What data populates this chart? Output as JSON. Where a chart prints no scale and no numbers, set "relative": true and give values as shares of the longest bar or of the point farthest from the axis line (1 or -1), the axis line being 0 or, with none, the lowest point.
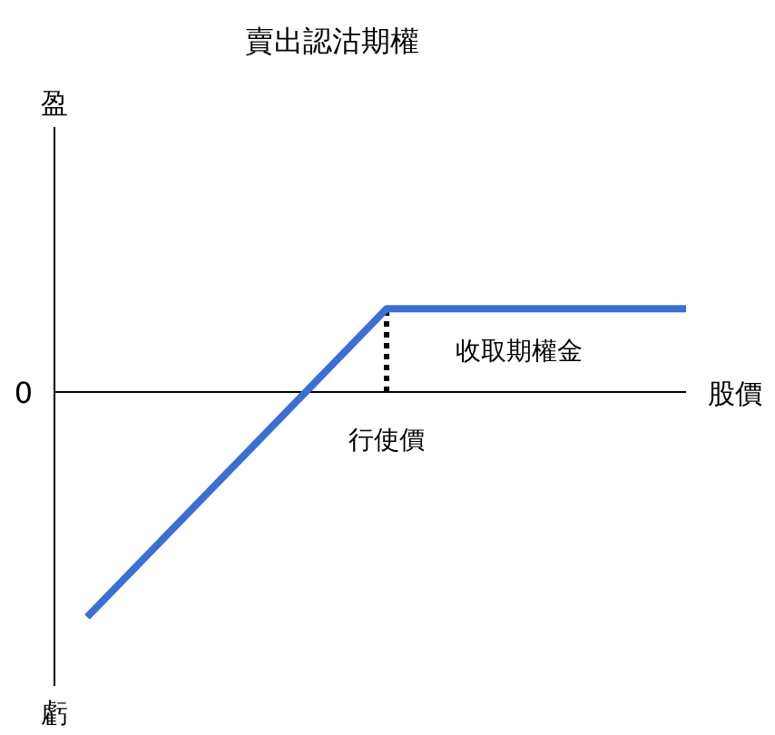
{
  "chart_data": {
    "type": "line",
    "title": "賣出認沽期權",
    "xlabel": "股價",
    "relative": true,
    "categories": [
      null,
      null,
      null
    ],
    "series": [
      {
        "color": "#3b6fd6",
        "values": [
          -1,
          0.37,
          0.37
        ]
      }
    ],
    "annotations": [
      "0",
      "盈",
      "虧",
      "行使價",
      "收取期權金"
    ]
  }
}
